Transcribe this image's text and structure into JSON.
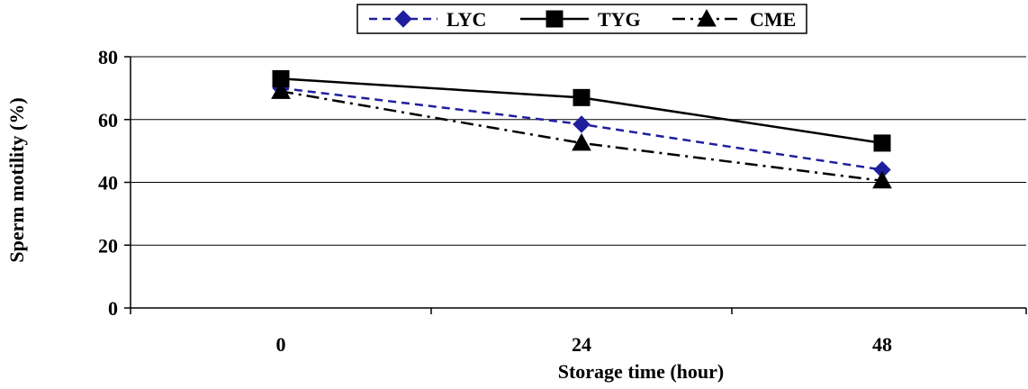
{
  "chart_data": {
    "type": "line",
    "title": "",
    "xlabel": "Storage time (hour)",
    "ylabel": "Sperm motility (%)",
    "x": [
      0,
      24,
      48
    ],
    "x_tick_labels": [
      "0",
      "24",
      "48"
    ],
    "ylim": [
      0,
      80
    ],
    "y_ticks": [
      0,
      20,
      40,
      60,
      80
    ],
    "y_tick_labels": [
      "0",
      "20",
      "40",
      "60",
      "80"
    ],
    "grid": true,
    "legend_position": "top-center",
    "series": [
      {
        "name": "LYC",
        "values": [
          70,
          58.5,
          44
        ],
        "color": "#1f1f9e",
        "line_style": "dashed",
        "marker": "diamond"
      },
      {
        "name": "TYG",
        "values": [
          73,
          67,
          52.5
        ],
        "color": "#000000",
        "line_style": "solid",
        "marker": "square"
      },
      {
        "name": "CME",
        "values": [
          69,
          52.5,
          40.5
        ],
        "color": "#000000",
        "line_style": "dash-dot",
        "marker": "triangle"
      }
    ]
  }
}
